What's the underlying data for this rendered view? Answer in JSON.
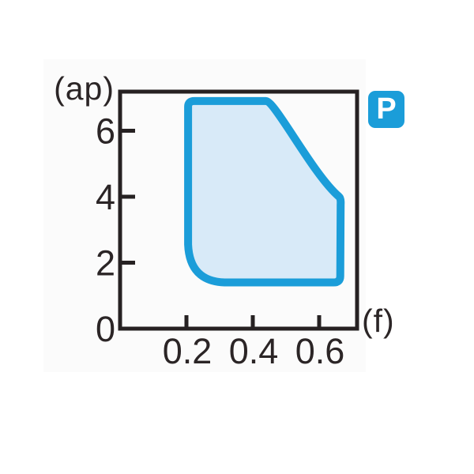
{
  "figure": {
    "badge": {
      "label": "P",
      "background": "#1b9dd9",
      "text_color": "#ffffff"
    }
  },
  "chart_data": {
    "type": "area",
    "title": "",
    "xlabel": "(f)",
    "ylabel": "(ap)",
    "x_ticks": [
      {
        "value": 0.2,
        "label": "0.2"
      },
      {
        "value": 0.4,
        "label": "0.4"
      },
      {
        "value": 0.6,
        "label": "0.6"
      }
    ],
    "y_ticks": [
      {
        "value": 0,
        "label": "0",
        "mark": false
      },
      {
        "value": 2,
        "label": "2",
        "mark": true
      },
      {
        "value": 4,
        "label": "4",
        "mark": true
      },
      {
        "value": 6,
        "label": "6",
        "mark": true
      }
    ],
    "xlim": [
      0,
      0.714
    ],
    "ylim": [
      0,
      7.19
    ],
    "grid": false,
    "legend": "none",
    "axis_color": "#262122",
    "text_color": "#2b2526",
    "region": {
      "description": "shaded operating area bounded by thick blue outline",
      "fill": "#d8eaf8",
      "stroke": "#1b9dd9",
      "stroke_width": 10,
      "boundary": [
        {
          "f": 0.205,
          "ap": 2.55,
          "note": "left edge lower end (large rounded corner below)"
        },
        {
          "f": 0.205,
          "ap": 6.9,
          "note": "left edge top (small rounded corner)"
        },
        {
          "f": 0.44,
          "ap": 6.9,
          "note": "end of flat top edge"
        },
        {
          "f": 0.66,
          "ap": 4.0,
          "note": "reached via concave descending curve"
        },
        {
          "f": 0.66,
          "ap": 1.4,
          "note": "right edge bottom"
        },
        {
          "f": 0.315,
          "ap": 1.4,
          "note": "bottom edge start of large rounded corner back to left edge"
        }
      ]
    }
  }
}
